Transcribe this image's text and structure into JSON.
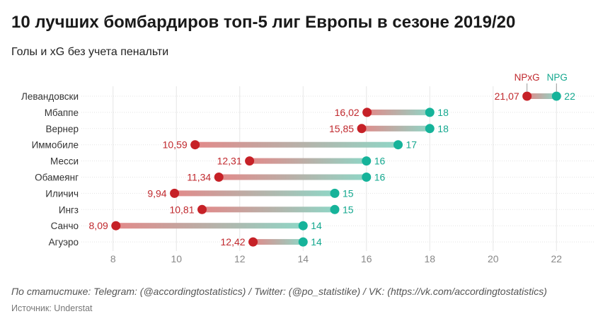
{
  "title": "10 лучших бомбардиров топ-5 лиг Европы в сезоне 2019/20",
  "subtitle": "Голы и xG без учета пенальти",
  "footer": {
    "note": "По статистике: Telegram: (@accordingtostatistics) / Twitter: (@po_statistike) / VK: (https://vk.com/accordingtostatistics)",
    "source": "Источник: Understat"
  },
  "chart_data": {
    "type": "dumbbell",
    "categories": [
      "Левандовски",
      "Мбаппе",
      "Вернер",
      "Иммобиле",
      "Месси",
      "Обамеянг",
      "Иличич",
      "Ингз",
      "Санчо",
      "Агуэро"
    ],
    "series": [
      {
        "name": "NPxG",
        "color": "#c62127",
        "values": [
          21.07,
          16.02,
          15.85,
          10.59,
          12.31,
          11.34,
          9.94,
          10.81,
          8.09,
          12.42
        ],
        "labels": [
          "21,07",
          "16,02",
          "15,85",
          "10,59",
          "12,31",
          "11,34",
          "9,94",
          "10,81",
          "8,09",
          "12,42"
        ]
      },
      {
        "name": "NPG",
        "color": "#16b39a",
        "values": [
          22,
          18,
          18,
          17,
          16,
          16,
          15,
          15,
          14,
          14
        ],
        "labels": [
          "22",
          "18",
          "18",
          "17",
          "16",
          "16",
          "15",
          "15",
          "14",
          "14"
        ]
      }
    ],
    "xticks": [
      8,
      10,
      12,
      14,
      16,
      18,
      20,
      22
    ],
    "xlim": [
      7,
      23.2
    ],
    "grid": true,
    "legend": "annotation on first row"
  }
}
